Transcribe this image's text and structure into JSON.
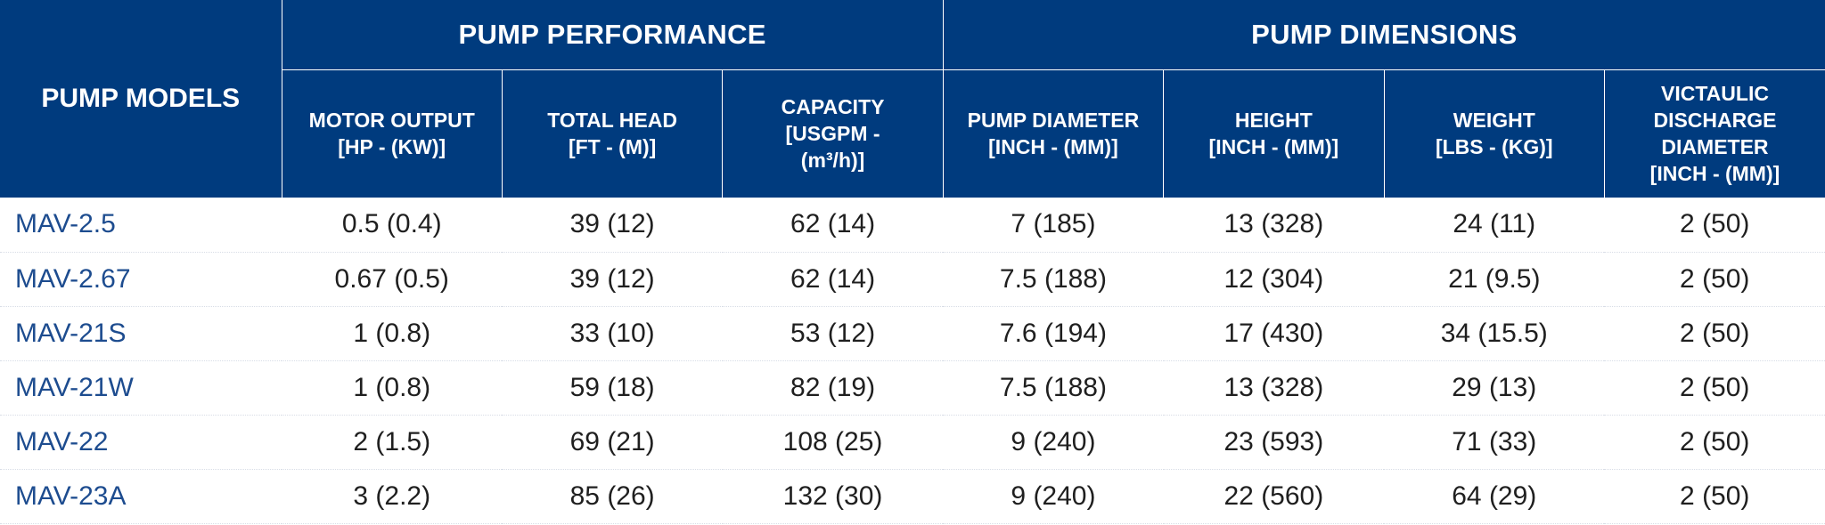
{
  "header": {
    "models_label": "PUMP MODELS",
    "groups": [
      {
        "label": "PUMP PERFORMANCE"
      },
      {
        "label": "PUMP DIMENSIONS"
      }
    ],
    "columns": [
      {
        "lines": [
          "MOTOR OUTPUT",
          "[HP - (KW)]"
        ]
      },
      {
        "lines": [
          "TOTAL HEAD",
          "[FT - (M)]"
        ]
      },
      {
        "lines": [
          "CAPACITY",
          "[USGPM -",
          "(m³/h)]"
        ]
      },
      {
        "lines": [
          "PUMP DIAMETER",
          "[INCH - (MM)]"
        ]
      },
      {
        "lines": [
          "HEIGHT",
          "[INCH - (MM)]"
        ]
      },
      {
        "lines": [
          "WEIGHT",
          "[LBS - (KG)]"
        ]
      },
      {
        "lines": [
          "VICTAULIC",
          "DISCHARGE",
          "DIAMETER",
          "[INCH - (MM)]"
        ]
      }
    ]
  },
  "rows": [
    {
      "model": "MAV-2.5",
      "values": [
        "0.5 (0.4)",
        "39 (12)",
        "62 (14)",
        "7 (185)",
        "13 (328)",
        "24 (11)",
        "2 (50)"
      ]
    },
    {
      "model": "MAV-2.67",
      "values": [
        "0.67 (0.5)",
        "39 (12)",
        "62 (14)",
        "7.5 (188)",
        "12 (304)",
        "21 (9.5)",
        "2 (50)"
      ]
    },
    {
      "model": "MAV-21S",
      "values": [
        "1 (0.8)",
        "33 (10)",
        "53 (12)",
        "7.6 (194)",
        "17 (430)",
        "34 (15.5)",
        "2 (50)"
      ]
    },
    {
      "model": "MAV-21W",
      "values": [
        "1 (0.8)",
        "59 (18)",
        "82 (19)",
        "7.5 (188)",
        "13 (328)",
        "29 (13)",
        "2 (50)"
      ]
    },
    {
      "model": "MAV-22",
      "values": [
        "2 (1.5)",
        "69 (21)",
        "108 (25)",
        "9 (240)",
        "23 (593)",
        "71 (33)",
        "2 (50)"
      ]
    },
    {
      "model": "MAV-23A",
      "values": [
        "3 (2.2)",
        "85 (26)",
        "132 (30)",
        "9 (240)",
        "22 (560)",
        "64 (29)",
        "2 (50)"
      ]
    }
  ],
  "colors": {
    "header_bg": "#003b7e",
    "header_text": "#ffffff",
    "model_text": "#1d4c8f",
    "cell_text": "#1f1f1f"
  }
}
